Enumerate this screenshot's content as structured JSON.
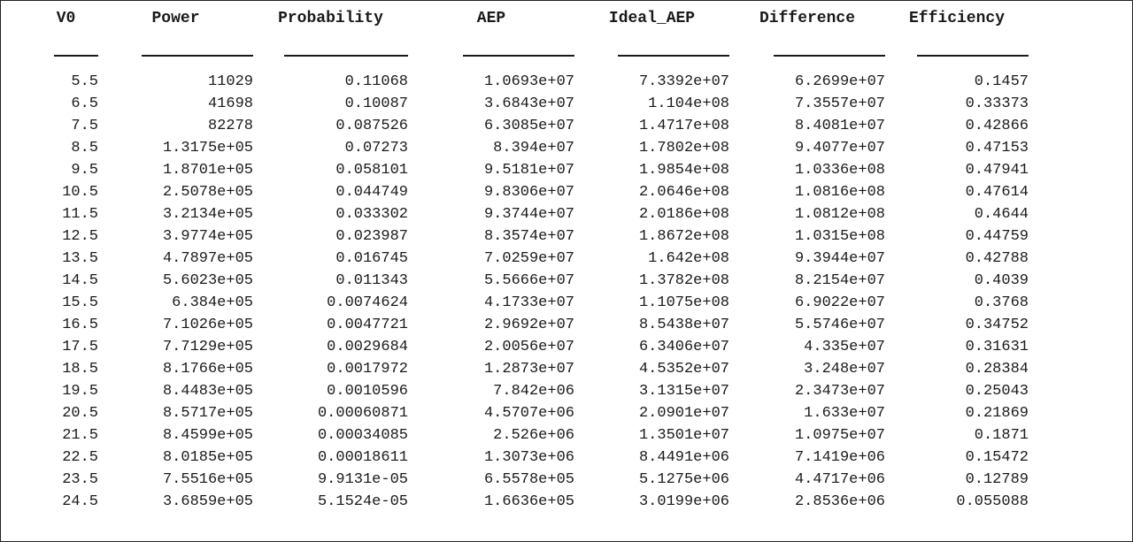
{
  "columns": [
    "V0",
    "Power",
    "Probability",
    "AEP",
    "Ideal_AEP",
    "Difference",
    "Efficiency"
  ],
  "rows": [
    [
      "5.5",
      "11029",
      "0.11068",
      "1.0693e+07",
      "7.3392e+07",
      "6.2699e+07",
      "0.1457"
    ],
    [
      "6.5",
      "41698",
      "0.10087",
      "3.6843e+07",
      "1.104e+08",
      "7.3557e+07",
      "0.33373"
    ],
    [
      "7.5",
      "82278",
      "0.087526",
      "6.3085e+07",
      "1.4717e+08",
      "8.4081e+07",
      "0.42866"
    ],
    [
      "8.5",
      "1.3175e+05",
      "0.07273",
      "8.394e+07",
      "1.7802e+08",
      "9.4077e+07",
      "0.47153"
    ],
    [
      "9.5",
      "1.8701e+05",
      "0.058101",
      "9.5181e+07",
      "1.9854e+08",
      "1.0336e+08",
      "0.47941"
    ],
    [
      "10.5",
      "2.5078e+05",
      "0.044749",
      "9.8306e+07",
      "2.0646e+08",
      "1.0816e+08",
      "0.47614"
    ],
    [
      "11.5",
      "3.2134e+05",
      "0.033302",
      "9.3744e+07",
      "2.0186e+08",
      "1.0812e+08",
      "0.4644"
    ],
    [
      "12.5",
      "3.9774e+05",
      "0.023987",
      "8.3574e+07",
      "1.8672e+08",
      "1.0315e+08",
      "0.44759"
    ],
    [
      "13.5",
      "4.7897e+05",
      "0.016745",
      "7.0259e+07",
      "1.642e+08",
      "9.3944e+07",
      "0.42788"
    ],
    [
      "14.5",
      "5.6023e+05",
      "0.011343",
      "5.5666e+07",
      "1.3782e+08",
      "8.2154e+07",
      "0.4039"
    ],
    [
      "15.5",
      "6.384e+05",
      "0.0074624",
      "4.1733e+07",
      "1.1075e+08",
      "6.9022e+07",
      "0.3768"
    ],
    [
      "16.5",
      "7.1026e+05",
      "0.0047721",
      "2.9692e+07",
      "8.5438e+07",
      "5.5746e+07",
      "0.34752"
    ],
    [
      "17.5",
      "7.7129e+05",
      "0.0029684",
      "2.0056e+07",
      "6.3406e+07",
      "4.335e+07",
      "0.31631"
    ],
    [
      "18.5",
      "8.1766e+05",
      "0.0017972",
      "1.2873e+07",
      "4.5352e+07",
      "3.248e+07",
      "0.28384"
    ],
    [
      "19.5",
      "8.4483e+05",
      "0.0010596",
      "7.842e+06",
      "3.1315e+07",
      "2.3473e+07",
      "0.25043"
    ],
    [
      "20.5",
      "8.5717e+05",
      "0.00060871",
      "4.5707e+06",
      "2.0901e+07",
      "1.633e+07",
      "0.21869"
    ],
    [
      "21.5",
      "8.4599e+05",
      "0.00034085",
      "2.526e+06",
      "1.3501e+07",
      "1.0975e+07",
      "0.1871"
    ],
    [
      "22.5",
      "8.0185e+05",
      "0.00018611",
      "1.3073e+06",
      "8.4491e+06",
      "7.1419e+06",
      "0.15472"
    ],
    [
      "23.5",
      "7.5516e+05",
      "9.9131e-05",
      "6.5578e+05",
      "5.1275e+06",
      "4.4717e+06",
      "0.12789"
    ],
    [
      "24.5",
      "3.6859e+05",
      "5.1524e-05",
      "1.6636e+05",
      "3.0199e+06",
      "2.8536e+06",
      "0.055088"
    ]
  ]
}
